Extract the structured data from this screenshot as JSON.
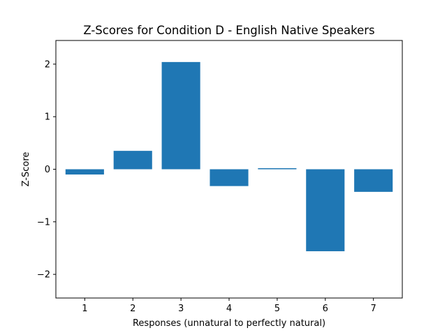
{
  "chart_data": {
    "type": "bar",
    "title": "Z-Scores for Condition D - English Native Speakers",
    "xlabel": "Responses (unnatural to perfectly natural)",
    "ylabel": "Z-Score",
    "categories": [
      "1",
      "2",
      "3",
      "4",
      "5",
      "6",
      "7"
    ],
    "values": [
      -0.1,
      0.35,
      2.04,
      -0.32,
      0.02,
      -1.56,
      -0.43
    ],
    "ylim": [
      -2.45,
      2.45
    ],
    "yticks": [
      -2,
      -1,
      0,
      1,
      2
    ],
    "ytick_labels": [
      "−2",
      "−1",
      "0",
      "1",
      "2"
    ],
    "bar_color": "#1f77b4",
    "grid": false,
    "legend": false
  }
}
